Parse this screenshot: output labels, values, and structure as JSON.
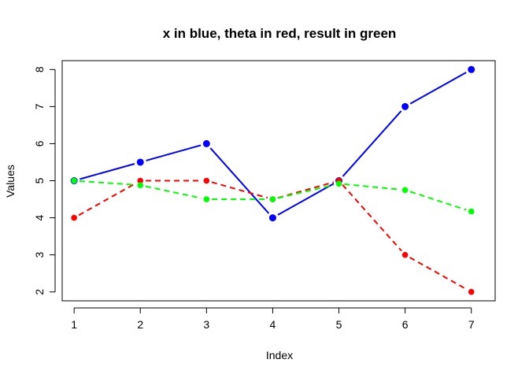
{
  "chart_data": {
    "type": "line",
    "title": "x in blue, theta in red, result in green",
    "xlabel": "Index",
    "ylabel": "Values",
    "x": [
      1,
      2,
      3,
      4,
      5,
      6,
      7
    ],
    "xlim": [
      0.82,
      7.36
    ],
    "ylim": [
      1.76,
      8.24
    ],
    "xticks": [
      "1",
      "2",
      "3",
      "4",
      "5",
      "6",
      "7"
    ],
    "yticks": [
      "2",
      "3",
      "4",
      "5",
      "6",
      "7",
      "8"
    ],
    "grid": false,
    "series": [
      {
        "values": [
          5,
          5.5,
          6,
          4,
          5,
          7,
          8
        ],
        "color": "#0000ff",
        "line_style": "solid"
      },
      {
        "values": [
          4,
          5,
          5,
          4.5,
          5,
          3,
          2
        ],
        "color": "#ff0000",
        "line_style": "dashed"
      },
      {
        "values": [
          5,
          4.88,
          4.5,
          4.5,
          4.92,
          4.75,
          4.17
        ],
        "color": "#00ff00",
        "line_style": "dashed"
      }
    ]
  }
}
